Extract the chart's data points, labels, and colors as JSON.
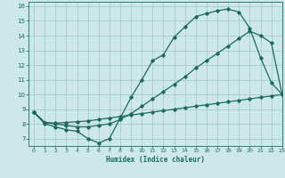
{
  "title": "",
  "xlabel": "Humidex (Indice chaleur)",
  "ylabel": "",
  "bg_color": "#cce8e8",
  "grid_color": "#aacaca",
  "line_color": "#1a6b5a",
  "xlim": [
    -0.5,
    23
  ],
  "ylim": [
    6.5,
    16.3
  ],
  "xticks": [
    0,
    1,
    2,
    3,
    4,
    5,
    6,
    7,
    8,
    9,
    10,
    11,
    12,
    13,
    14,
    15,
    16,
    17,
    18,
    19,
    20,
    21,
    22,
    23
  ],
  "yticks": [
    7,
    8,
    9,
    10,
    11,
    12,
    13,
    14,
    15,
    16
  ],
  "line1_x": [
    0,
    1,
    2,
    3,
    4,
    5,
    6,
    7,
    8,
    9,
    10,
    11,
    12,
    13,
    14,
    15,
    16,
    17,
    18,
    19,
    20,
    21,
    22,
    23
  ],
  "line1_y": [
    8.8,
    8.0,
    7.8,
    7.6,
    7.5,
    7.0,
    6.7,
    7.0,
    8.4,
    9.8,
    11.0,
    12.3,
    12.7,
    13.9,
    14.6,
    15.3,
    15.5,
    15.7,
    15.8,
    15.6,
    14.5,
    12.5,
    10.8,
    10.0
  ],
  "line2_x": [
    0,
    1,
    2,
    3,
    4,
    5,
    6,
    7,
    8,
    9,
    10,
    11,
    12,
    13,
    14,
    15,
    16,
    17,
    18,
    19,
    20,
    21,
    22,
    23
  ],
  "line2_y": [
    8.8,
    8.1,
    8.0,
    7.9,
    7.8,
    7.8,
    7.9,
    8.0,
    8.3,
    8.7,
    9.2,
    9.7,
    10.2,
    10.7,
    11.2,
    11.8,
    12.3,
    12.8,
    13.3,
    13.8,
    14.3,
    14.0,
    13.5,
    10.0
  ],
  "line3_x": [
    0,
    1,
    2,
    3,
    4,
    5,
    6,
    7,
    8,
    9,
    10,
    11,
    12,
    13,
    14,
    15,
    16,
    17,
    18,
    19,
    20,
    21,
    22,
    23
  ],
  "line3_y": [
    8.8,
    8.1,
    8.05,
    8.1,
    8.15,
    8.2,
    8.3,
    8.4,
    8.5,
    8.6,
    8.7,
    8.8,
    8.9,
    9.0,
    9.1,
    9.2,
    9.3,
    9.4,
    9.5,
    9.6,
    9.7,
    9.8,
    9.9,
    10.0
  ]
}
